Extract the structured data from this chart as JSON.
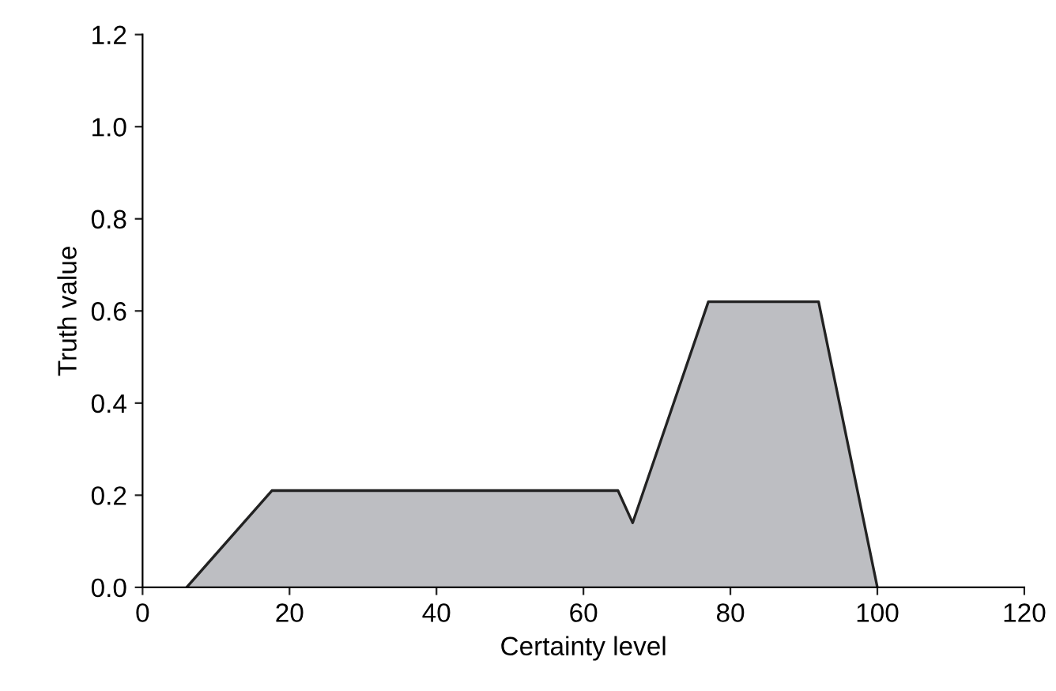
{
  "chart_data": {
    "type": "area",
    "xlabel": "Certainty level",
    "ylabel": "Truth value",
    "series": [
      {
        "color": "#bdbec2",
        "x": [
          6,
          17.6,
          64.7,
          66.7,
          77,
          92,
          100
        ],
        "values": [
          0,
          0.21,
          0.21,
          0.14,
          0.62,
          0.62,
          0
        ]
      }
    ],
    "xlim": [
      0,
      120
    ],
    "xticks": [
      0,
      20,
      40,
      60,
      80,
      100,
      120
    ],
    "ylim": [
      0,
      1.2
    ],
    "yticks": [
      {
        "value": 0,
        "label": "0.0"
      },
      0.2,
      0.4,
      0.6,
      0.8,
      {
        "value": 1,
        "label": "1.0"
      },
      1.2
    ],
    "grid": false,
    "legend": false
  }
}
